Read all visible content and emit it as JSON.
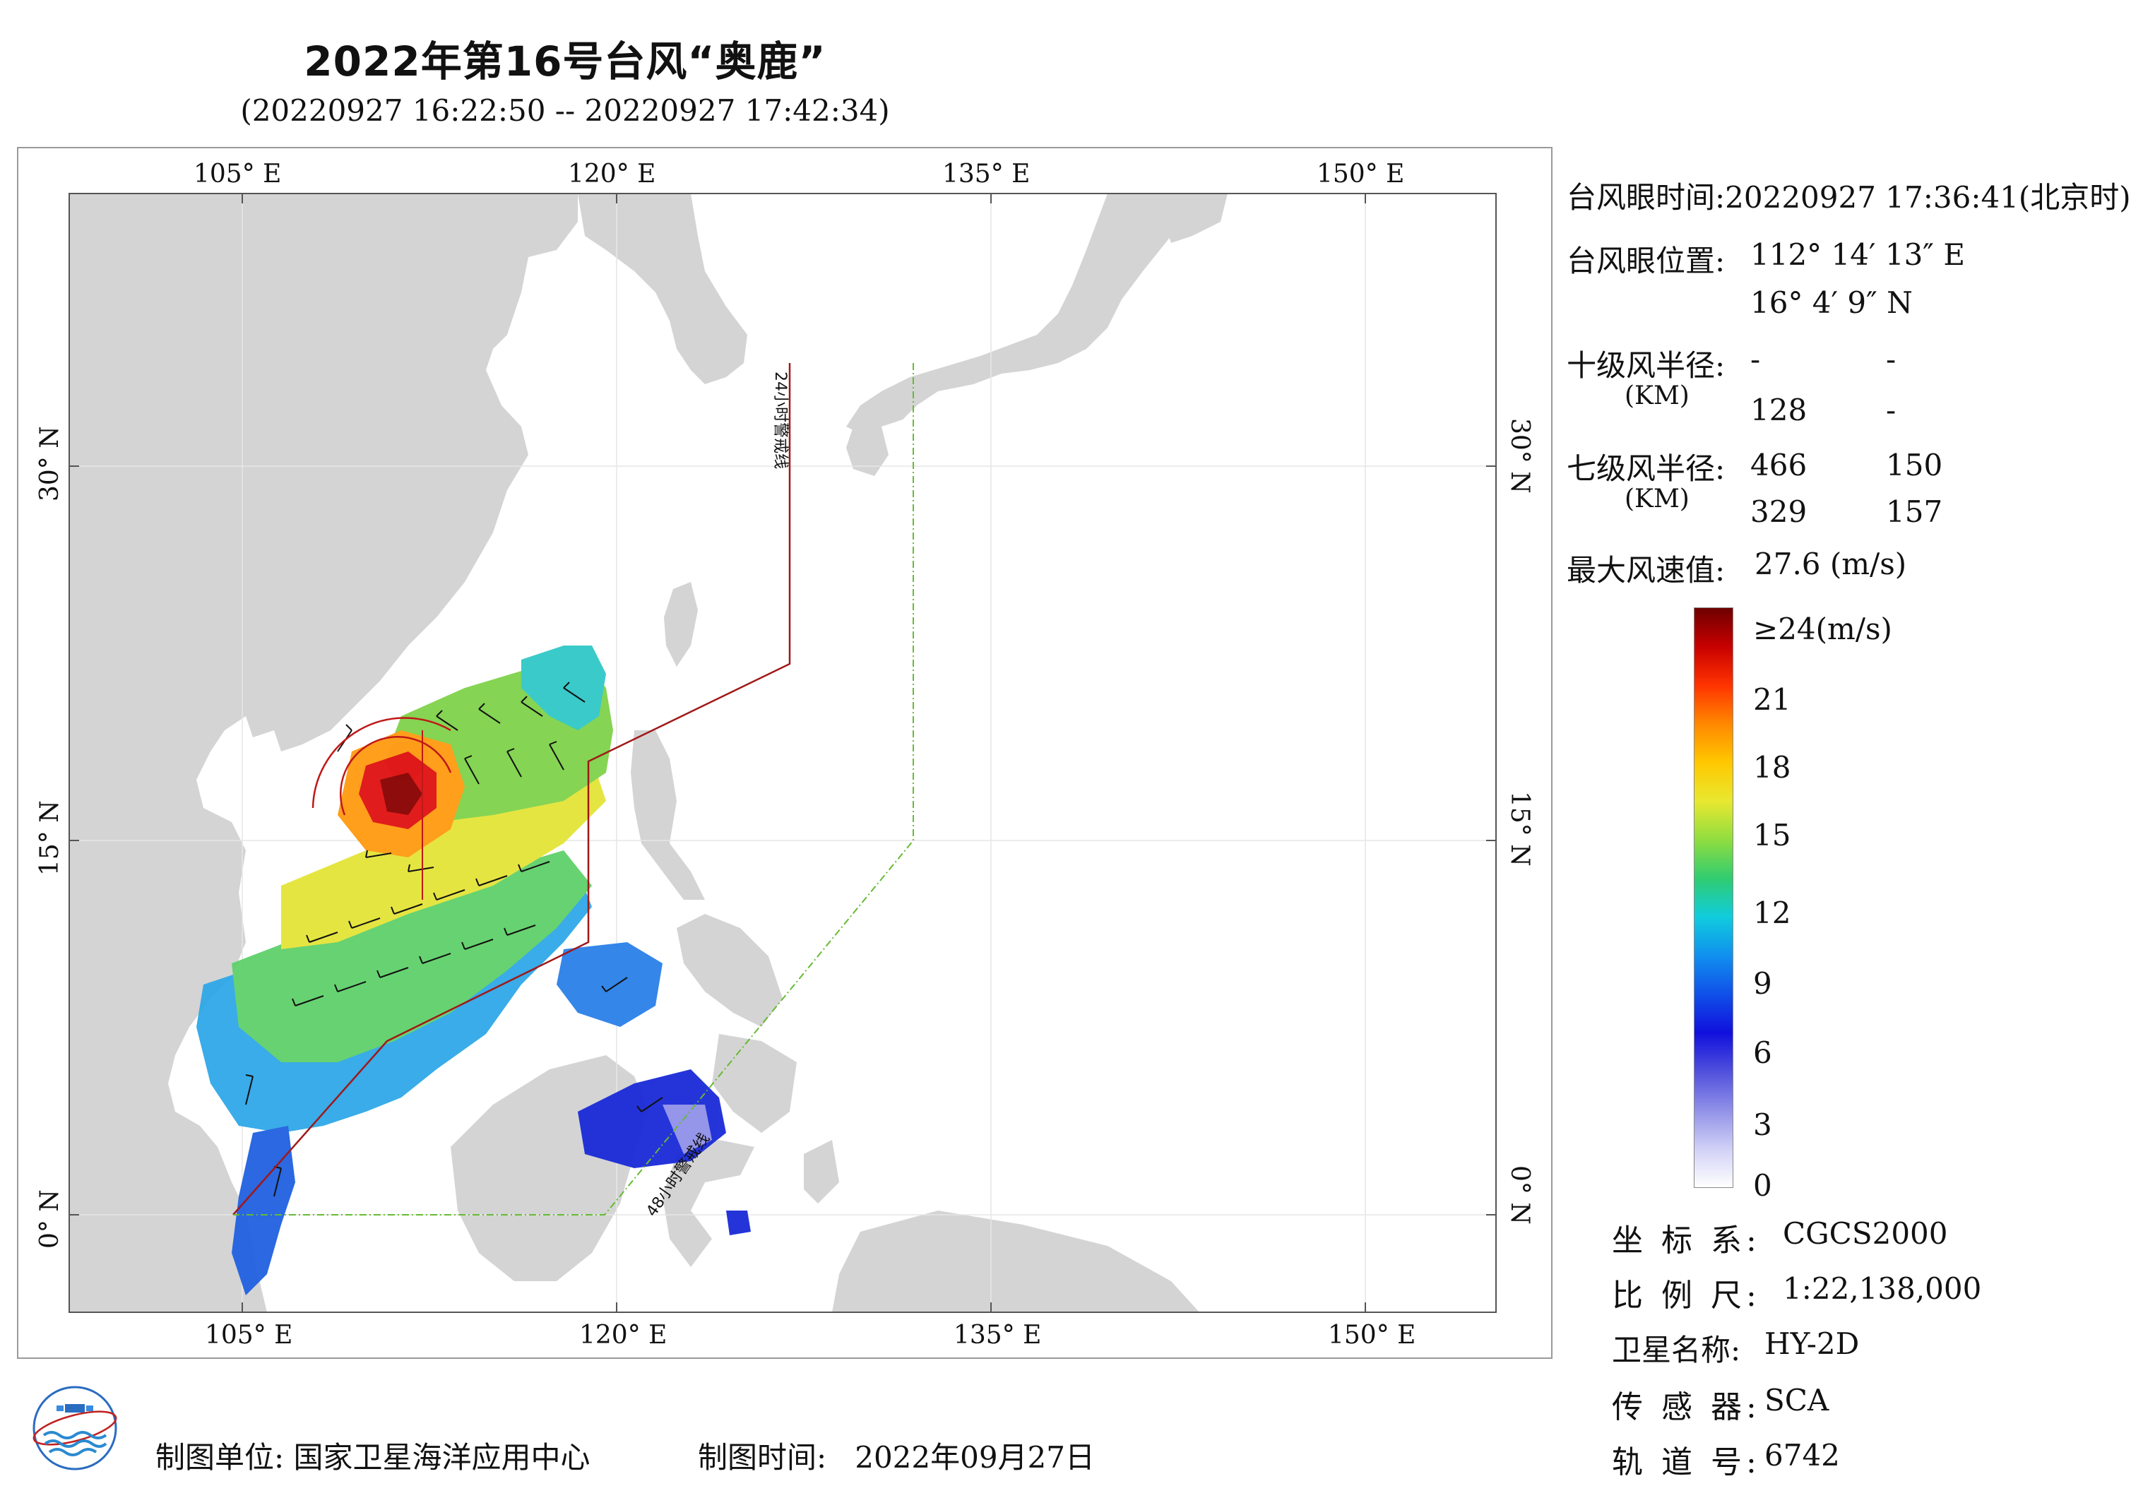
{
  "title": "2022年第16号台风“奥鹿”",
  "subtitle": "(20220927 16:22:50 -- 20220927 17:42:34)",
  "map": {
    "lon_labels": [
      "105° E",
      "120° E",
      "135° E",
      "150° E"
    ],
    "lat_labels": [
      "30° N",
      "15° N",
      "0° N"
    ],
    "line_24h_label": "24小时警戒线",
    "line_48h_label": "48小时警戒线",
    "colors": {
      "land": "#d4d4d4",
      "sea": "#ffffff",
      "warn24": "#a01818",
      "warn48": "#66bb33"
    }
  },
  "typhoon": {
    "eye_time_label": "台风眼时间:",
    "eye_time_value": "20220927 17:36:41(北京时)",
    "eye_pos_label": "台风眼位置:",
    "eye_lon": "112° 14′ 13″ E",
    "eye_lat": "16° 4′ 9″ N",
    "r10_label": "十级风半径:",
    "km_label": "(KM)",
    "r10": [
      [
        "-",
        "-"
      ],
      [
        "128",
        "-"
      ]
    ],
    "r7_label": "七级风半径:",
    "r7": [
      [
        "466",
        "150"
      ],
      [
        "329",
        "157"
      ]
    ],
    "max_wind_label": "最大风速值:",
    "max_wind_value": "27.6  (m/s)"
  },
  "colorbar": {
    "labels": [
      "≥24(m/s)",
      "21",
      "18",
      "15",
      "12",
      "9",
      "6",
      "3",
      "0"
    ],
    "stops": [
      "#6e0000",
      "#c80000",
      "#ff3300",
      "#ff8800",
      "#ffc800",
      "#e8e830",
      "#90dd40",
      "#30cc70",
      "#10ccdd",
      "#1090ee",
      "#1050e8",
      "#1010dd",
      "#5050dd",
      "#9090e8",
      "#d0d0f6",
      "#ffffff"
    ]
  },
  "meta": {
    "crs_label": "坐 标 系:",
    "crs_value": "CGCS2000",
    "scale_label": "比 例 尺:",
    "scale_value": "1:22,138,000",
    "sat_label": "卫星名称:",
    "sat_value": "HY-2D",
    "sensor_label": "传 感 器:",
    "sensor_value": "SCA",
    "orbit_label": "轨 道 号:",
    "orbit_value": "6742"
  },
  "footer": {
    "unit_label": "制图单位:",
    "unit_value": "国家卫星海洋应用中心",
    "date_label": "制图时间:",
    "date_value": "2022年09月27日"
  }
}
